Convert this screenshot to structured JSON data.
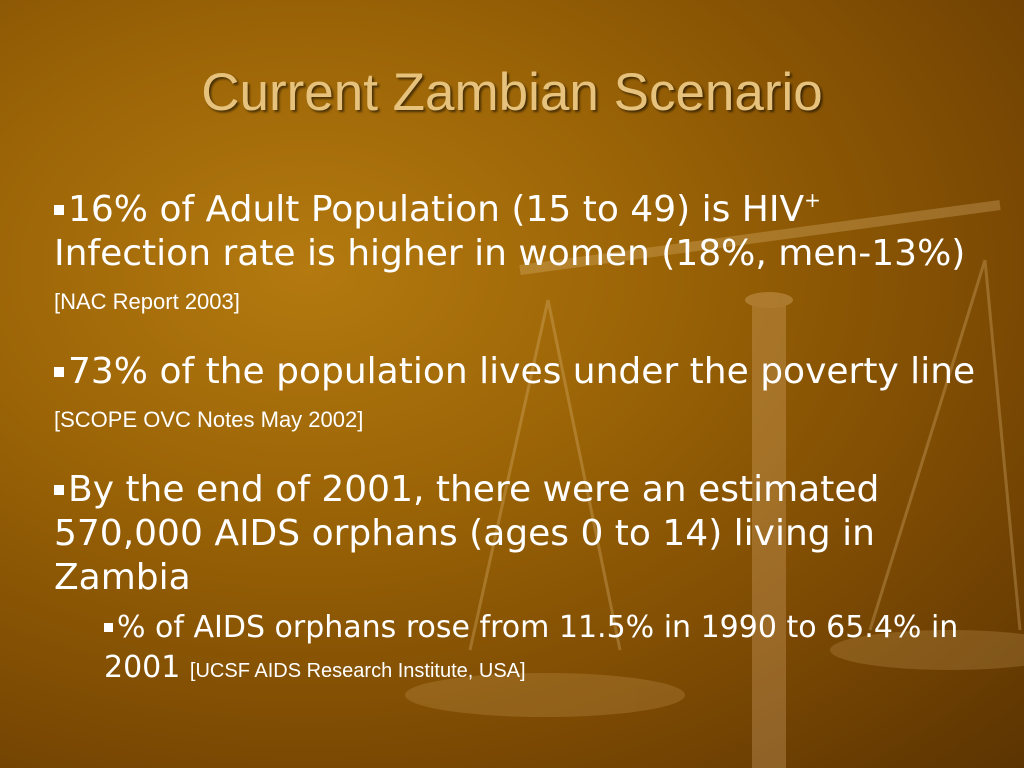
{
  "title": "Current Zambian Scenario",
  "bullets": [
    {
      "line1": "16% of Adult Population (15 to 49) is HIV",
      "superscript": "+",
      "line2": "Infection rate is higher in women (18%, men-13%)",
      "citation": "[NAC Report 2003]"
    },
    {
      "text": "73% of the population lives under the poverty line",
      "citation": "[SCOPE OVC Notes May 2002]"
    },
    {
      "text": "By the end of 2001, there were an estimated 570,000 AIDS orphans (ages 0 to 14) living in Zambia"
    }
  ],
  "sub_bullet": {
    "text": "% of AIDS orphans rose from 11.5% in 1990 to 65.4% in 2001",
    "citation": "[UCSF AIDS Research Institute, USA]"
  }
}
